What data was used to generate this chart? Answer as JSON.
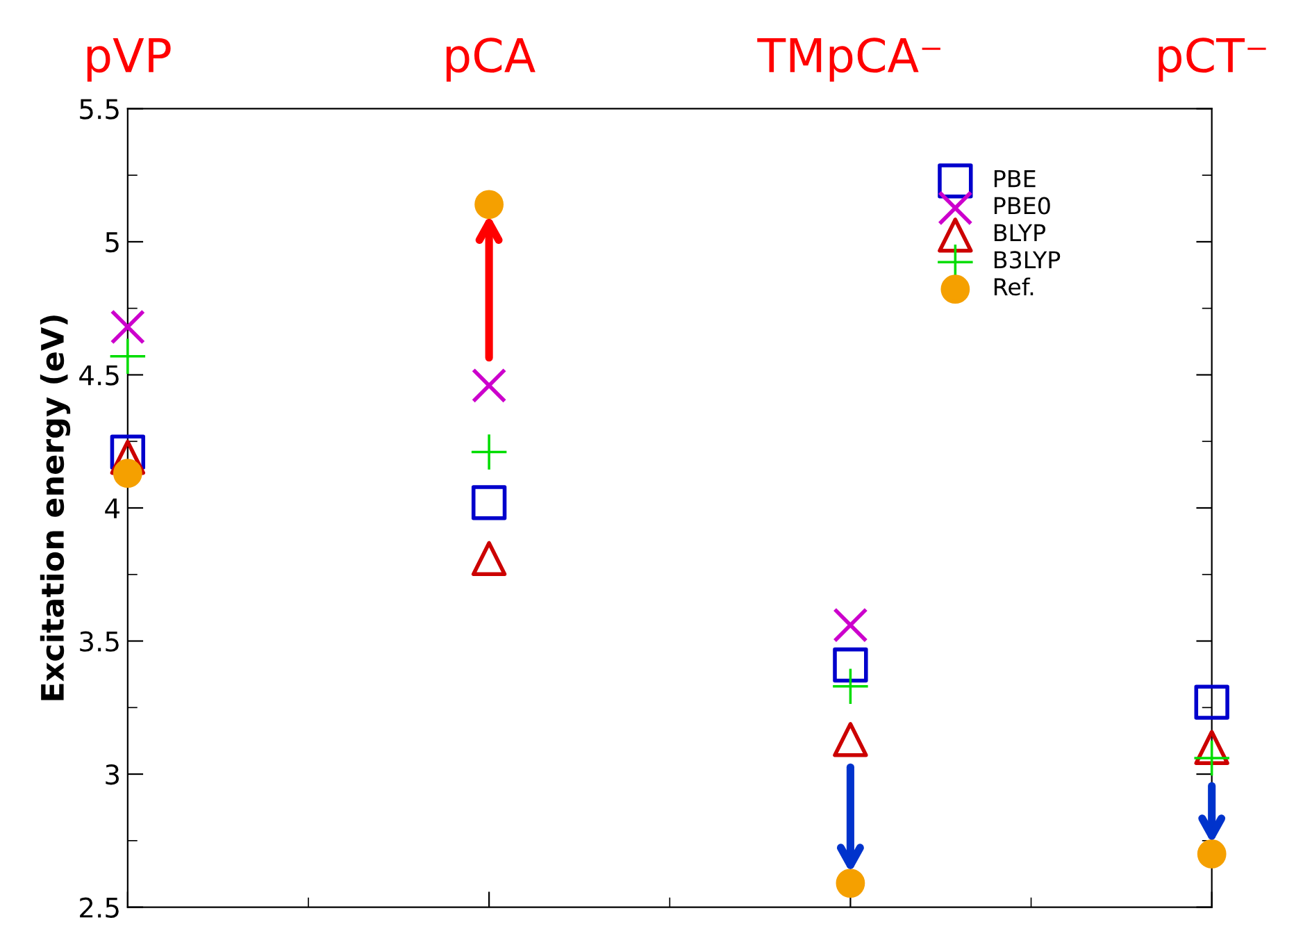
{
  "chart_data": {
    "type": "scatter",
    "ylabel": "Excitation energy (eV)",
    "categories": [
      "pVP",
      "pCA",
      "TMpCA⁻",
      "pCT⁻"
    ],
    "series": [
      {
        "name": "PBE",
        "color": "#0000cc",
        "marker": "square",
        "values": [
          4.21,
          4.02,
          3.41,
          3.27
        ]
      },
      {
        "name": "PBE0",
        "color": "#cc00cc",
        "marker": "cross",
        "values": [
          4.68,
          4.46,
          3.56,
          null
        ]
      },
      {
        "name": "BLYP",
        "color": "#cc0000",
        "marker": "triangle",
        "values": [
          4.19,
          3.81,
          3.13,
          3.1
        ]
      },
      {
        "name": "B3LYP",
        "color": "#00dd00",
        "marker": "cross",
        "values": [
          4.57,
          4.21,
          3.33,
          3.06
        ]
      },
      {
        "name": "Ref.",
        "color": "#f5a000",
        "marker": "circle",
        "values": [
          4.13,
          5.14,
          2.59,
          2.7
        ]
      }
    ],
    "ylim": [
      2.5,
      5.5
    ],
    "yticks": [
      2.5,
      3,
      3.5,
      4,
      4.5,
      5,
      5.5
    ],
    "grid": false,
    "legend": "top right"
  }
}
